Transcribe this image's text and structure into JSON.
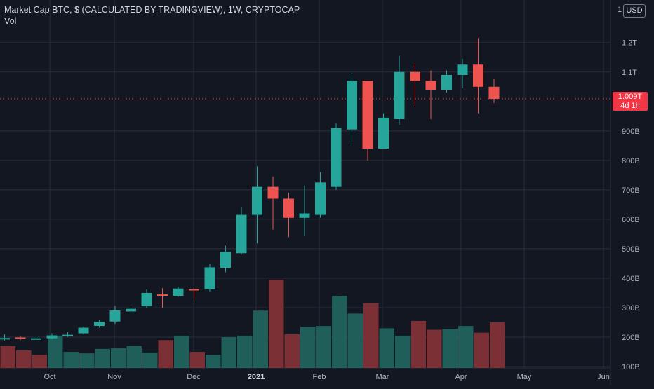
{
  "header": {
    "title": "Market Cap BTC, $ (CALCULATED BY TRADINGVIEW), 1W, CRYPTOCAP",
    "volume_label": "Vol",
    "currency_button": "USD",
    "currency_prefix": "1"
  },
  "colors": {
    "background": "#131722",
    "up": "#26a69a",
    "down": "#ef5350",
    "vol_up": "#1f5e59",
    "vol_down": "#7a3035",
    "grid": "#2a2e39",
    "axis_text": "#b2b5be",
    "last_price": "#f23645"
  },
  "price_tag": {
    "price": "1.009T",
    "countdown": "4d 1h"
  },
  "chart_data": {
    "type": "candlestick",
    "title": "Market Cap BTC, $ (CALCULATED BY TRADINGVIEW), 1W, CRYPTOCAP",
    "interval": "1W",
    "y_unit": "USD",
    "y_ticks": [
      "1.2T",
      "1.1T",
      "1.009T",
      "900B",
      "800B",
      "700B",
      "600B",
      "500B",
      "400B",
      "300B",
      "200B",
      "100B"
    ],
    "y_tick_values": [
      1200,
      1100,
      1009,
      900,
      800,
      700,
      600,
      500,
      400,
      300,
      200,
      100
    ],
    "y_tick_units": "billions USD",
    "x_ticks": [
      "Oct",
      "Nov",
      "Dec",
      "2021",
      "Feb",
      "Mar",
      "Apr",
      "May",
      "Jun"
    ],
    "last_price": 1009,
    "candles": [
      {
        "o": 194,
        "h": 210,
        "l": 189,
        "c": 197
      },
      {
        "o": 199,
        "h": 203,
        "l": 190,
        "c": 196
      },
      {
        "o": 195,
        "h": 200,
        "l": 190,
        "c": 196
      },
      {
        "o": 196,
        "h": 213,
        "l": 193,
        "c": 206
      },
      {
        "o": 206,
        "h": 217,
        "l": 201,
        "c": 208
      },
      {
        "o": 213,
        "h": 236,
        "l": 209,
        "c": 232
      },
      {
        "o": 238,
        "h": 259,
        "l": 232,
        "c": 252
      },
      {
        "o": 253,
        "h": 306,
        "l": 245,
        "c": 291
      },
      {
        "o": 287,
        "h": 301,
        "l": 280,
        "c": 296
      },
      {
        "o": 305,
        "h": 362,
        "l": 299,
        "c": 350
      },
      {
        "o": 345,
        "h": 366,
        "l": 300,
        "c": 344
      },
      {
        "o": 340,
        "h": 371,
        "l": 337,
        "c": 365
      },
      {
        "o": 363,
        "h": 364,
        "l": 330,
        "c": 361
      },
      {
        "o": 362,
        "h": 450,
        "l": 355,
        "c": 437
      },
      {
        "o": 435,
        "h": 510,
        "l": 420,
        "c": 490
      },
      {
        "o": 485,
        "h": 640,
        "l": 480,
        "c": 615
      },
      {
        "o": 615,
        "h": 780,
        "l": 518,
        "c": 710
      },
      {
        "o": 710,
        "h": 745,
        "l": 565,
        "c": 670
      },
      {
        "o": 670,
        "h": 690,
        "l": 540,
        "c": 605
      },
      {
        "o": 605,
        "h": 715,
        "l": 545,
        "c": 620
      },
      {
        "o": 615,
        "h": 760,
        "l": 605,
        "c": 725
      },
      {
        "o": 710,
        "h": 925,
        "l": 700,
        "c": 910
      },
      {
        "o": 905,
        "h": 1090,
        "l": 855,
        "c": 1070
      },
      {
        "o": 1070,
        "h": 1070,
        "l": 800,
        "c": 840
      },
      {
        "o": 840,
        "h": 960,
        "l": 840,
        "c": 945
      },
      {
        "o": 940,
        "h": 1155,
        "l": 920,
        "c": 1100
      },
      {
        "o": 1100,
        "h": 1130,
        "l": 985,
        "c": 1070
      },
      {
        "o": 1070,
        "h": 1105,
        "l": 940,
        "c": 1040
      },
      {
        "o": 1040,
        "h": 1105,
        "l": 1030,
        "c": 1090
      },
      {
        "o": 1090,
        "h": 1145,
        "l": 1045,
        "c": 1125
      },
      {
        "o": 1125,
        "h": 1215,
        "l": 960,
        "c": 1050
      },
      {
        "o": 1050,
        "h": 1078,
        "l": 995,
        "c": 1009
      }
    ],
    "volume": [
      {
        "v": 170,
        "dir": "down"
      },
      {
        "v": 155,
        "dir": "down"
      },
      {
        "v": 140,
        "dir": "down"
      },
      {
        "v": 205,
        "dir": "up"
      },
      {
        "v": 150,
        "dir": "up"
      },
      {
        "v": 145,
        "dir": "up"
      },
      {
        "v": 160,
        "dir": "up"
      },
      {
        "v": 162,
        "dir": "up"
      },
      {
        "v": 170,
        "dir": "up"
      },
      {
        "v": 148,
        "dir": "up"
      },
      {
        "v": 190,
        "dir": "down"
      },
      {
        "v": 205,
        "dir": "up"
      },
      {
        "v": 150,
        "dir": "down"
      },
      {
        "v": 140,
        "dir": "up"
      },
      {
        "v": 200,
        "dir": "up"
      },
      {
        "v": 205,
        "dir": "up"
      },
      {
        "v": 290,
        "dir": "up"
      },
      {
        "v": 395,
        "dir": "down"
      },
      {
        "v": 210,
        "dir": "down"
      },
      {
        "v": 235,
        "dir": "up"
      },
      {
        "v": 238,
        "dir": "up"
      },
      {
        "v": 340,
        "dir": "up"
      },
      {
        "v": 280,
        "dir": "up"
      },
      {
        "v": 315,
        "dir": "down"
      },
      {
        "v": 230,
        "dir": "up"
      },
      {
        "v": 205,
        "dir": "up"
      },
      {
        "v": 255,
        "dir": "down"
      },
      {
        "v": 225,
        "dir": "down"
      },
      {
        "v": 228,
        "dir": "up"
      },
      {
        "v": 238,
        "dir": "up"
      },
      {
        "v": 215,
        "dir": "down"
      },
      {
        "v": 250,
        "dir": "down"
      }
    ],
    "volume_note": "volume bar heights expressed on the same 100B-1.2T scale as shown by overlay",
    "grid": true
  }
}
